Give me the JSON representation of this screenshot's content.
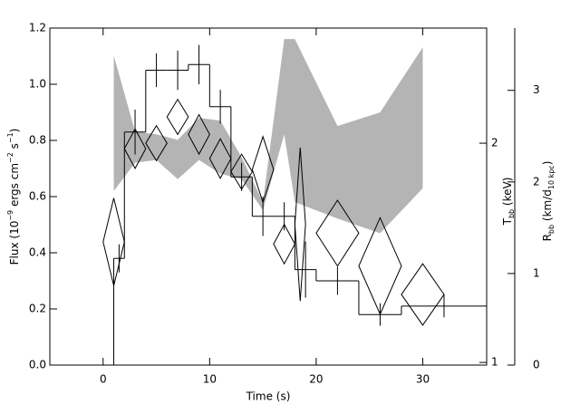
{
  "chart_data": {
    "type": "spectral-evolution",
    "xlabel": "Time (s)",
    "ylabel": [
      {
        "t": "Flux (10"
      },
      {
        "t": "−9",
        "sup": true
      },
      {
        "t": " ergs cm"
      },
      {
        "t": "−2",
        "sup": true
      },
      {
        "t": " s"
      },
      {
        "t": "−1",
        "sup": true
      },
      {
        "t": ")"
      }
    ],
    "y2label": [
      {
        "t": "T"
      },
      {
        "t": "bb",
        "sub": true
      },
      {
        "t": " (keV)"
      }
    ],
    "y3label": [
      {
        "t": "R"
      },
      {
        "t": "bb",
        "sub": true
      },
      {
        "t": " (km/d"
      },
      {
        "t": "10 kpc",
        "sub": true
      },
      {
        "t": ")"
      }
    ],
    "xlim": [
      -5,
      36
    ],
    "xticks": [
      0,
      10,
      20,
      30
    ],
    "ylim": [
      0,
      1.2
    ],
    "yticks": [
      {
        "value": 0,
        "label": "0.0"
      },
      {
        "value": 0.2,
        "label": "0.2"
      },
      {
        "value": 0.4,
        "label": "0.4"
      },
      {
        "value": 0.6,
        "label": "0.6"
      },
      {
        "value": 0.8,
        "label": "0.8"
      },
      {
        "value": 1.0,
        "label": "1.0"
      },
      {
        "value": 1.2,
        "label": "1.2"
      }
    ],
    "y2lim": [
      0.988,
      2.525
    ],
    "y2ticks": [
      1,
      2
    ],
    "y3lim": [
      0,
      3.68
    ],
    "y3ticks": [
      0,
      1,
      2,
      3
    ],
    "flux": {
      "color": "#000000",
      "bins": [
        1,
        2,
        4,
        6,
        8,
        10,
        12,
        14,
        16,
        18,
        20,
        24,
        28,
        36
      ],
      "values": [
        0.38,
        0.83,
        1.05,
        1.05,
        1.07,
        0.92,
        0.67,
        0.53,
        0.53,
        0.34,
        0.3,
        0.18,
        0.21
      ],
      "errors": [
        0.05,
        0.08,
        0.06,
        0.07,
        0.07,
        0.06,
        0.05,
        0.07,
        0.05,
        0.1,
        0.05,
        0.04,
        0.04
      ]
    },
    "tbb": {
      "axis": "y2",
      "color": "#000000",
      "x": [
        1,
        3,
        5,
        7,
        9,
        11,
        13,
        15,
        17,
        18.5,
        22,
        26,
        30
      ],
      "xerr": [
        1,
        1,
        1,
        1,
        1,
        1,
        1,
        1,
        1,
        0.5,
        2,
        2,
        2
      ],
      "values": [
        1.55,
        1.975,
        2.0,
        2.12,
        2.04,
        1.93,
        1.87,
        1.88,
        1.54,
        1.63,
        1.59,
        1.44,
        1.31
      ],
      "errors": [
        0.2,
        0.09,
        0.08,
        0.08,
        0.09,
        0.09,
        0.08,
        0.15,
        0.09,
        0.35,
        0.15,
        0.22,
        0.14
      ]
    },
    "rbb": {
      "axis": "y3",
      "color": "#b4b4b4",
      "x": [
        1,
        3,
        5,
        7,
        9,
        11,
        13,
        15,
        17,
        18,
        22,
        26,
        30
      ],
      "upper": [
        3.38,
        2.55,
        2.52,
        2.46,
        2.7,
        2.67,
        2.27,
        1.78,
        3.56,
        3.56,
        2.61,
        2.76,
        3.47
      ],
      "lower": [
        1.9,
        2.21,
        2.24,
        2.03,
        2.24,
        2.09,
        2.03,
        1.69,
        2.52,
        1.78,
        1.6,
        1.44,
        1.93
      ]
    }
  }
}
